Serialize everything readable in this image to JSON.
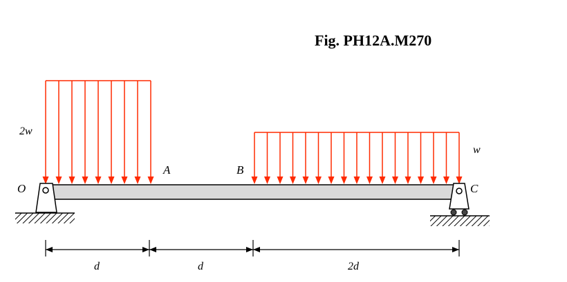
{
  "figure": {
    "title": "Fig. PH12A.M270"
  },
  "loads": {
    "left": {
      "label": "2w",
      "magnitude": 2,
      "start_point": "O",
      "end_point": "A"
    },
    "right": {
      "label": "w",
      "magnitude": 1,
      "start_point": "B",
      "end_point": "C"
    }
  },
  "points": {
    "O": "O",
    "A": "A",
    "B": "B",
    "C": "C"
  },
  "dimensions": [
    {
      "label": "d",
      "length": 1
    },
    {
      "label": "d",
      "length": 1
    },
    {
      "label": "2d",
      "length": 2
    }
  ],
  "colors": {
    "load_arrow": "#ff2a00",
    "beam_fill": "#d9d9d9",
    "line": "#000000"
  }
}
